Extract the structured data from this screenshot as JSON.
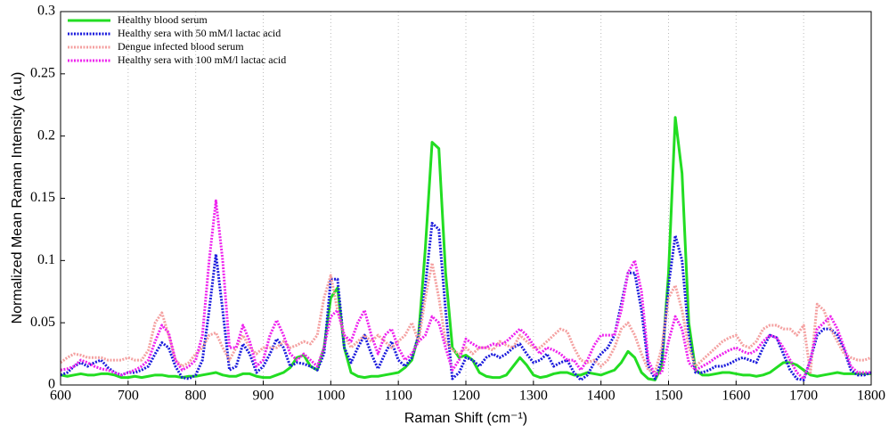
{
  "chart_data": {
    "type": "line",
    "xlabel": "Raman Shift (cm⁻¹)",
    "ylabel": "Normalized Mean Raman Intensity (a.u)",
    "x": [
      600,
      610,
      620,
      630,
      640,
      650,
      660,
      670,
      680,
      690,
      700,
      710,
      720,
      730,
      740,
      750,
      760,
      770,
      780,
      790,
      800,
      810,
      820,
      830,
      840,
      850,
      860,
      870,
      880,
      890,
      900,
      910,
      920,
      930,
      940,
      950,
      960,
      970,
      980,
      990,
      1000,
      1010,
      1020,
      1030,
      1040,
      1050,
      1060,
      1070,
      1080,
      1090,
      1100,
      1110,
      1120,
      1130,
      1140,
      1150,
      1160,
      1170,
      1180,
      1190,
      1200,
      1210,
      1220,
      1230,
      1240,
      1250,
      1260,
      1270,
      1280,
      1290,
      1300,
      1310,
      1320,
      1330,
      1340,
      1350,
      1360,
      1370,
      1380,
      1390,
      1400,
      1410,
      1420,
      1430,
      1440,
      1450,
      1460,
      1470,
      1480,
      1490,
      1500,
      1510,
      1520,
      1530,
      1540,
      1550,
      1560,
      1570,
      1580,
      1590,
      1600,
      1610,
      1620,
      1630,
      1640,
      1650,
      1660,
      1670,
      1680,
      1690,
      1700,
      1710,
      1720,
      1730,
      1740,
      1750,
      1760,
      1770,
      1780,
      1790,
      1800
    ],
    "series": [
      {
        "name": "Healthy blood serum",
        "color": "#22dd22",
        "style": "solid",
        "values": [
          0.008,
          0.007,
          0.008,
          0.009,
          0.008,
          0.008,
          0.009,
          0.009,
          0.008,
          0.006,
          0.006,
          0.007,
          0.006,
          0.007,
          0.008,
          0.008,
          0.007,
          0.007,
          0.006,
          0.007,
          0.007,
          0.008,
          0.009,
          0.01,
          0.008,
          0.007,
          0.007,
          0.009,
          0.009,
          0.007,
          0.006,
          0.006,
          0.008,
          0.01,
          0.014,
          0.022,
          0.024,
          0.015,
          0.012,
          0.03,
          0.07,
          0.078,
          0.03,
          0.01,
          0.007,
          0.006,
          0.007,
          0.007,
          0.008,
          0.009,
          0.01,
          0.014,
          0.02,
          0.04,
          0.11,
          0.195,
          0.19,
          0.09,
          0.03,
          0.022,
          0.024,
          0.02,
          0.01,
          0.007,
          0.006,
          0.006,
          0.008,
          0.015,
          0.022,
          0.016,
          0.008,
          0.006,
          0.007,
          0.009,
          0.01,
          0.01,
          0.008,
          0.008,
          0.01,
          0.009,
          0.008,
          0.01,
          0.012,
          0.018,
          0.027,
          0.022,
          0.01,
          0.005,
          0.004,
          0.015,
          0.09,
          0.215,
          0.17,
          0.05,
          0.012,
          0.008,
          0.008,
          0.009,
          0.01,
          0.01,
          0.009,
          0.008,
          0.008,
          0.007,
          0.008,
          0.01,
          0.014,
          0.018,
          0.018,
          0.016,
          0.012,
          0.008,
          0.007,
          0.008,
          0.009,
          0.01,
          0.009,
          0.009,
          0.009,
          0.009,
          0.009
        ]
      },
      {
        "name": "Healthy sera with 50 mM/l lactac acid",
        "color": "#1a1adc",
        "style": "dotted",
        "values": [
          0.008,
          0.01,
          0.015,
          0.018,
          0.015,
          0.018,
          0.02,
          0.014,
          0.01,
          0.008,
          0.01,
          0.01,
          0.012,
          0.015,
          0.025,
          0.034,
          0.03,
          0.015,
          0.006,
          0.005,
          0.008,
          0.02,
          0.06,
          0.105,
          0.06,
          0.012,
          0.015,
          0.033,
          0.025,
          0.01,
          0.015,
          0.025,
          0.037,
          0.03,
          0.015,
          0.018,
          0.017,
          0.015,
          0.012,
          0.025,
          0.085,
          0.085,
          0.03,
          0.018,
          0.03,
          0.04,
          0.025,
          0.013,
          0.025,
          0.035,
          0.02,
          0.015,
          0.022,
          0.04,
          0.08,
          0.13,
          0.125,
          0.06,
          0.005,
          0.01,
          0.022,
          0.02,
          0.015,
          0.022,
          0.025,
          0.022,
          0.025,
          0.03,
          0.033,
          0.025,
          0.018,
          0.02,
          0.025,
          0.015,
          0.018,
          0.02,
          0.01,
          0.004,
          0.008,
          0.018,
          0.025,
          0.03,
          0.04,
          0.065,
          0.09,
          0.09,
          0.06,
          0.015,
          0.005,
          0.02,
          0.08,
          0.12,
          0.1,
          0.04,
          0.01,
          0.01,
          0.012,
          0.015,
          0.015,
          0.017,
          0.02,
          0.022,
          0.02,
          0.018,
          0.03,
          0.04,
          0.038,
          0.025,
          0.012,
          0.005,
          0.004,
          0.02,
          0.04,
          0.045,
          0.045,
          0.04,
          0.028,
          0.012,
          0.008,
          0.008,
          0.01
        ]
      },
      {
        "name": "Dengue infected blood serum",
        "color": "#f4a0a0",
        "style": "dotted",
        "values": [
          0.018,
          0.022,
          0.025,
          0.024,
          0.022,
          0.022,
          0.022,
          0.02,
          0.02,
          0.02,
          0.022,
          0.02,
          0.02,
          0.028,
          0.05,
          0.058,
          0.04,
          0.02,
          0.015,
          0.018,
          0.025,
          0.03,
          0.04,
          0.042,
          0.03,
          0.02,
          0.03,
          0.04,
          0.03,
          0.025,
          0.03,
          0.03,
          0.03,
          0.035,
          0.03,
          0.032,
          0.035,
          0.033,
          0.04,
          0.07,
          0.088,
          0.06,
          0.04,
          0.03,
          0.035,
          0.04,
          0.035,
          0.04,
          0.035,
          0.03,
          0.035,
          0.04,
          0.05,
          0.035,
          0.07,
          0.098,
          0.07,
          0.035,
          0.028,
          0.025,
          0.03,
          0.025,
          0.03,
          0.03,
          0.028,
          0.035,
          0.032,
          0.03,
          0.04,
          0.035,
          0.03,
          0.03,
          0.035,
          0.04,
          0.045,
          0.043,
          0.03,
          0.02,
          0.018,
          0.02,
          0.015,
          0.02,
          0.03,
          0.045,
          0.05,
          0.04,
          0.025,
          0.012,
          0.01,
          0.03,
          0.07,
          0.08,
          0.06,
          0.03,
          0.015,
          0.02,
          0.025,
          0.03,
          0.035,
          0.038,
          0.04,
          0.032,
          0.03,
          0.035,
          0.045,
          0.048,
          0.048,
          0.045,
          0.045,
          0.04,
          0.048,
          0.01,
          0.065,
          0.06,
          0.045,
          0.035,
          0.025,
          0.022,
          0.02,
          0.02,
          0.022
        ]
      },
      {
        "name": "Healthy sera with 100 mM/l lactac acid",
        "color": "#ee22ee",
        "style": "dotted",
        "values": [
          0.012,
          0.013,
          0.015,
          0.02,
          0.018,
          0.015,
          0.013,
          0.012,
          0.01,
          0.008,
          0.01,
          0.012,
          0.015,
          0.02,
          0.035,
          0.048,
          0.042,
          0.02,
          0.012,
          0.015,
          0.02,
          0.04,
          0.1,
          0.148,
          0.1,
          0.03,
          0.03,
          0.048,
          0.035,
          0.015,
          0.02,
          0.04,
          0.052,
          0.04,
          0.025,
          0.02,
          0.025,
          0.02,
          0.015,
          0.03,
          0.055,
          0.06,
          0.04,
          0.035,
          0.05,
          0.06,
          0.04,
          0.025,
          0.04,
          0.045,
          0.03,
          0.02,
          0.025,
          0.035,
          0.04,
          0.055,
          0.05,
          0.03,
          0.012,
          0.02,
          0.037,
          0.033,
          0.03,
          0.03,
          0.033,
          0.032,
          0.035,
          0.04,
          0.045,
          0.04,
          0.032,
          0.025,
          0.03,
          0.028,
          0.025,
          0.02,
          0.02,
          0.012,
          0.02,
          0.032,
          0.04,
          0.04,
          0.04,
          0.06,
          0.09,
          0.1,
          0.075,
          0.02,
          0.008,
          0.01,
          0.035,
          0.055,
          0.045,
          0.018,
          0.012,
          0.015,
          0.018,
          0.022,
          0.025,
          0.028,
          0.03,
          0.027,
          0.025,
          0.028,
          0.035,
          0.04,
          0.038,
          0.03,
          0.02,
          0.01,
          0.005,
          0.02,
          0.045,
          0.05,
          0.055,
          0.045,
          0.03,
          0.015,
          0.01,
          0.01,
          0.01
        ]
      }
    ],
    "xlim": [
      600,
      1800
    ],
    "ylim": [
      0,
      0.3
    ],
    "xticks": [
      600,
      700,
      800,
      900,
      1000,
      1100,
      1200,
      1300,
      1400,
      1500,
      1600,
      1700,
      1800
    ],
    "yticks": [
      0,
      0.05,
      0.1,
      0.15,
      0.2,
      0.25,
      0.3
    ],
    "grid": "x",
    "legend": "upper left"
  }
}
